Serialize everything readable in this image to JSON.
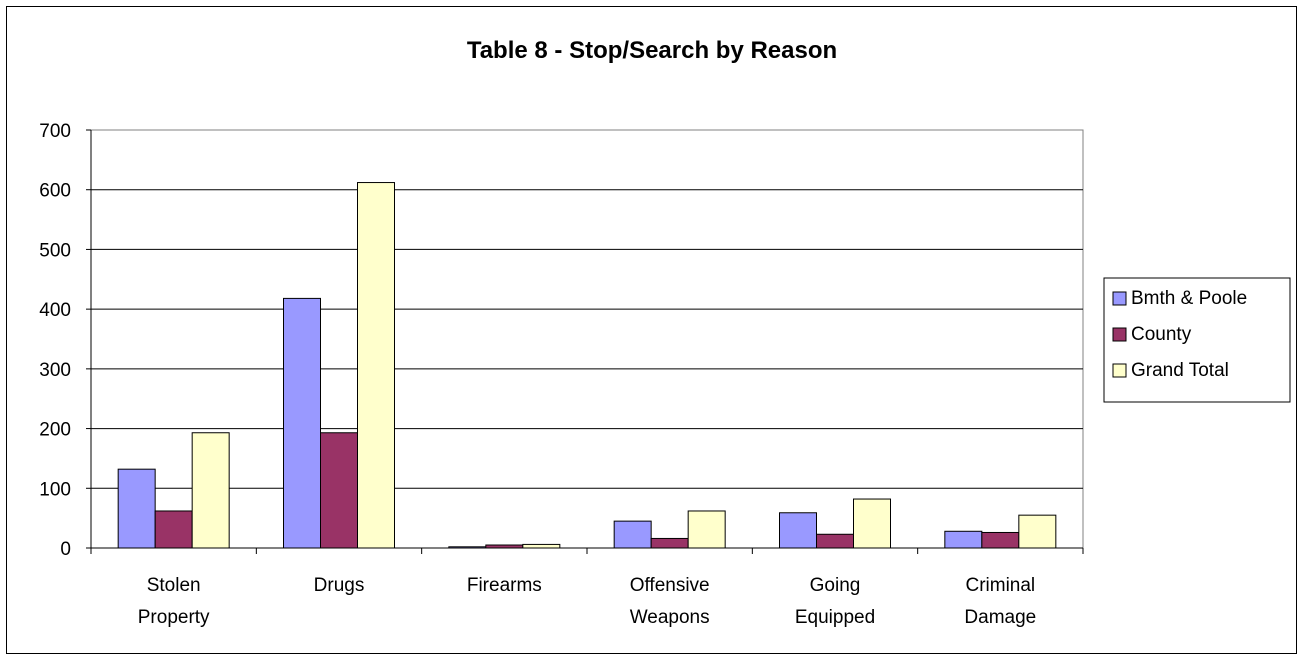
{
  "chart_data": {
    "type": "bar",
    "title": "Table 8 - Stop/Search by Reason",
    "xlabel": "",
    "ylabel": "",
    "ylim": [
      0,
      700
    ],
    "yticks": [
      0,
      100,
      200,
      300,
      400,
      500,
      600,
      700
    ],
    "grid": true,
    "legend_position": "right",
    "categories": [
      [
        "Stolen",
        "Property"
      ],
      [
        "Drugs"
      ],
      [
        "Firearms"
      ],
      [
        "Offensive",
        "Weapons"
      ],
      [
        "Going",
        "Equipped"
      ],
      [
        "Criminal",
        "Damage"
      ]
    ],
    "series": [
      {
        "name": "Bmth & Poole",
        "color": "#9999ff",
        "values": [
          132,
          418,
          2,
          45,
          59,
          28
        ]
      },
      {
        "name": "County",
        "color": "#993366",
        "values": [
          62,
          193,
          5,
          16,
          23,
          26
        ]
      },
      {
        "name": "Grand Total",
        "color": "#ffffcc",
        "values": [
          193,
          612,
          6,
          62,
          82,
          55
        ]
      }
    ]
  }
}
